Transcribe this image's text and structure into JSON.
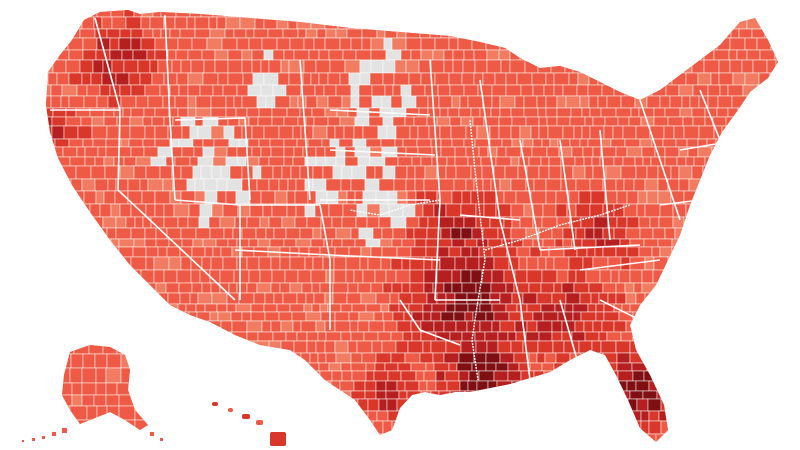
{
  "map": {
    "kind": "county-choropleth",
    "region": "United States",
    "palette": {
      "no_data": "#e3e3e3",
      "class_1": "#f7a58b",
      "class_2": "#f27c62",
      "class_3": "#ee5a45",
      "class_4": "#d9372a",
      "class_5": "#b51f1f",
      "class_6": "#7f0f12",
      "borders": "#ffffff"
    },
    "inset_alaska": true,
    "inset_hawaii": true
  }
}
